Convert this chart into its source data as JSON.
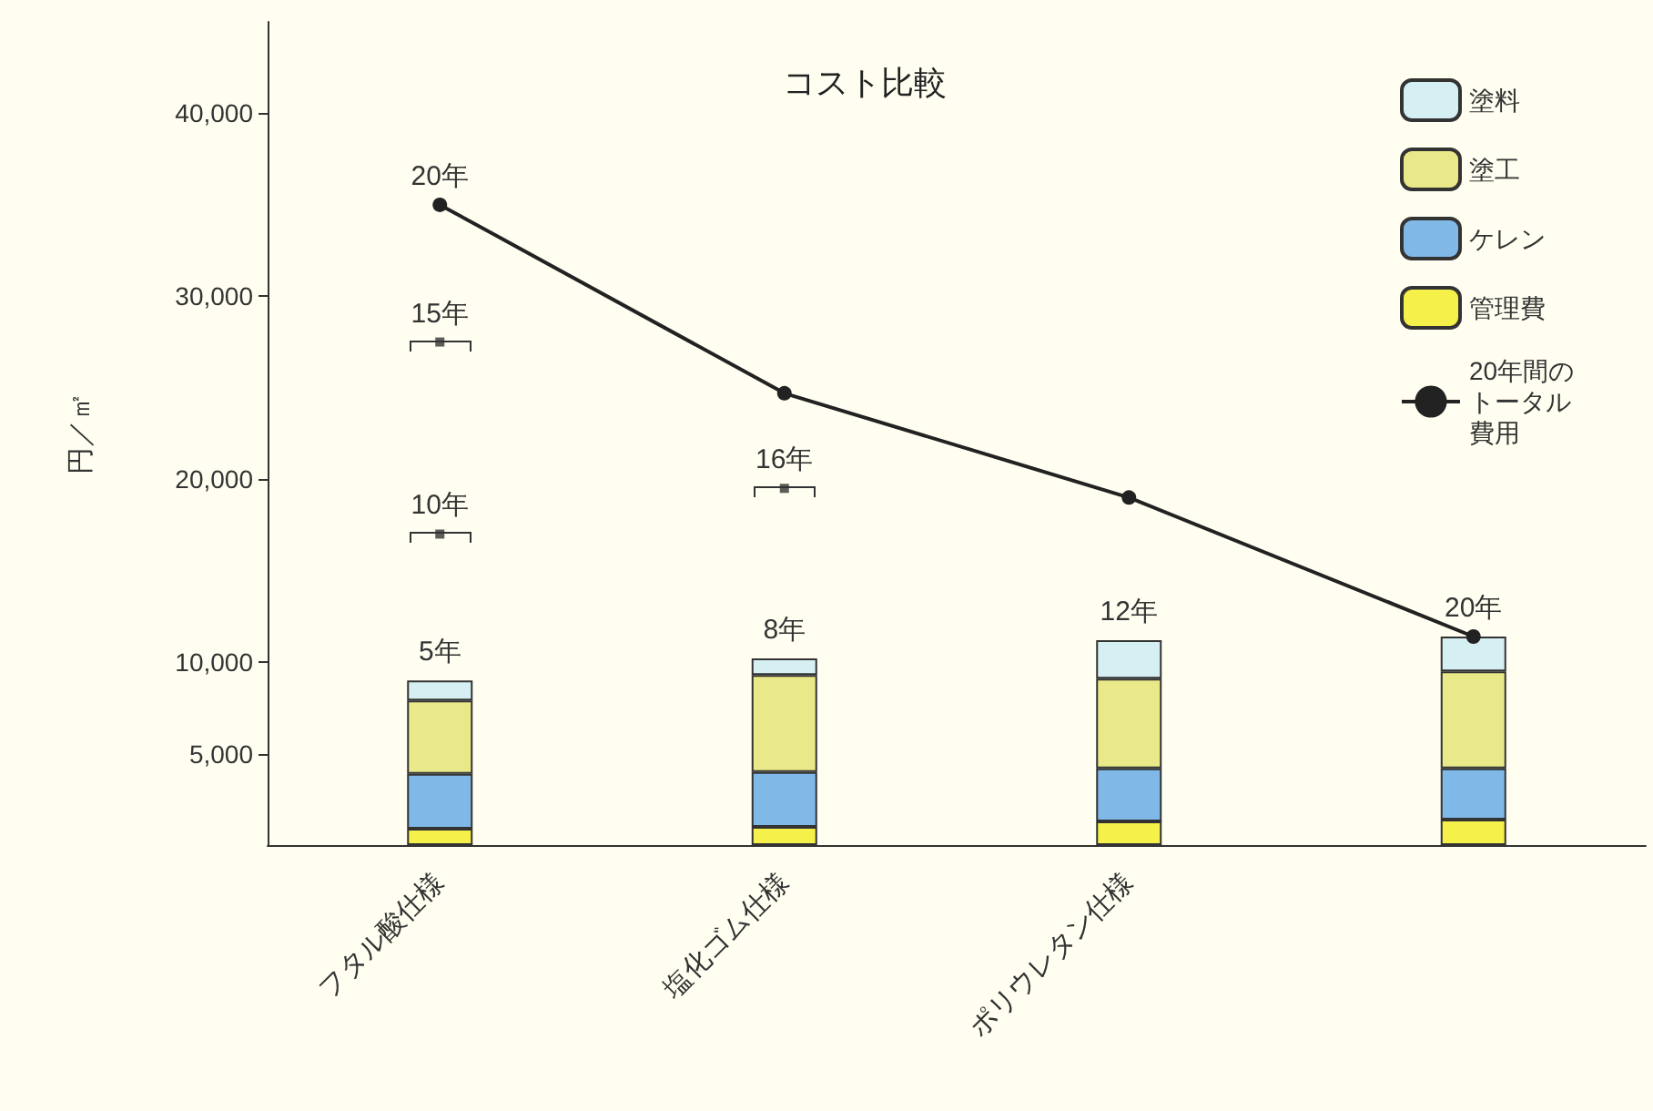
{
  "chart_data": {
    "type": "bar",
    "title": "コスト比較",
    "ylabel": "円／㎡",
    "stacked": true,
    "categories": [
      "フタル酸仕様",
      "塩化ゴム仕様",
      "ポリウレタン仕様",
      null
    ],
    "series": [
      {
        "name": "管理費",
        "color": "#f5f04a",
        "values": [
          900,
          1000,
          1300,
          1400
        ]
      },
      {
        "name": "ケレン",
        "color": "#80b9e8",
        "values": [
          3000,
          3000,
          2900,
          2800
        ]
      },
      {
        "name": "塗工",
        "color": "#e9e98a",
        "values": [
          4000,
          5300,
          4900,
          5300
        ]
      },
      {
        "name": "塗料",
        "color": "#d6eff2",
        "values": [
          1100,
          900,
          2100,
          1900
        ]
      },
      {
        "name": "20年間のトータル費用",
        "type": "line",
        "color": "#222222",
        "marker": "circle",
        "values": [
          35000,
          24700,
          19000,
          11400
        ]
      },
      {
        "type": "scatter",
        "color": "#333333",
        "marker": "square",
        "x": [
          "フタル酸仕様",
          "フタル酸仕様",
          "塩化ゴム仕様"
        ],
        "values": [
          17000,
          27500,
          19500
        ]
      }
    ],
    "ylim": [
      0,
      45000
    ],
    "yticks": [
      {
        "value": 5000,
        "label": "5,000"
      },
      {
        "value": 10000,
        "label": "10,000"
      },
      {
        "value": 20000,
        "label": "20,000"
      },
      {
        "value": 30000,
        "label": "30,000"
      },
      {
        "value": 40000,
        "label": "40,000"
      }
    ],
    "annotations": [
      {
        "text": "5年",
        "x": "フタル酸仕様",
        "y": 9000
      },
      {
        "text": "10年",
        "x": "フタル酸仕様",
        "y": 17000
      },
      {
        "text": "15年",
        "x": "フタル酸仕様",
        "y": 27500
      },
      {
        "text": "20年",
        "x": "フタル酸仕様",
        "y": 35000
      },
      {
        "text": "8年",
        "x": "塩化ゴム仕様",
        "y": 10200
      },
      {
        "text": "16年",
        "x": "塩化ゴム仕様",
        "y": 19500
      },
      {
        "text": "12年",
        "x": "ポリウレタン仕様",
        "y": 11200
      },
      {
        "text": "20年",
        "y": 11400
      }
    ],
    "grid": false,
    "legend": "top right"
  }
}
